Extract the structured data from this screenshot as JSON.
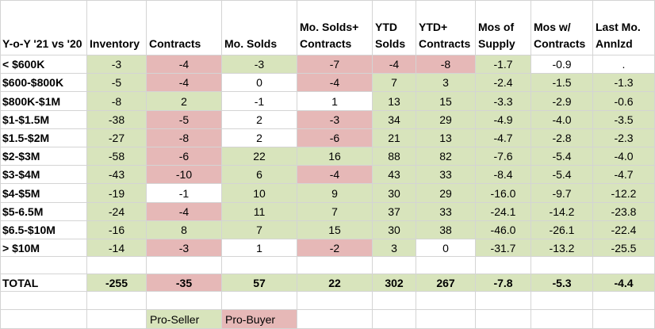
{
  "header": {
    "corner": "Y-o-Y '21 vs '20",
    "columns": [
      "Inventory",
      "Contracts",
      "Mo. Solds",
      "Mo. Solds+ Contracts",
      "YTD Solds",
      "YTD+ Contracts",
      "Mos of Supply",
      "Mos w/ Contracts",
      "Last Mo. Annlzd"
    ]
  },
  "rows": [
    {
      "label": "< $600K",
      "values": [
        "-3",
        "-4",
        "-3",
        "-7",
        "-4",
        "-8",
        "-1.7",
        "-0.9",
        "."
      ],
      "colors": [
        "g",
        "r",
        "g",
        "r",
        "r",
        "r",
        "g",
        "w",
        "w"
      ]
    },
    {
      "label": "$600-$800K",
      "values": [
        "-5",
        "-4",
        "0",
        "-4",
        "7",
        "3",
        "-2.4",
        "-1.5",
        "-1.3"
      ],
      "colors": [
        "g",
        "r",
        "w",
        "r",
        "g",
        "g",
        "g",
        "g",
        "g"
      ]
    },
    {
      "label": "$800K-$1M",
      "values": [
        "-8",
        "2",
        "-1",
        "1",
        "13",
        "15",
        "-3.3",
        "-2.9",
        "-0.6"
      ],
      "colors": [
        "g",
        "g",
        "w",
        "w",
        "g",
        "g",
        "g",
        "g",
        "g"
      ]
    },
    {
      "label": "$1-$1.5M",
      "values": [
        "-38",
        "-5",
        "2",
        "-3",
        "34",
        "29",
        "-4.9",
        "-4.0",
        "-3.5"
      ],
      "colors": [
        "g",
        "r",
        "w",
        "r",
        "g",
        "g",
        "g",
        "g",
        "g"
      ]
    },
    {
      "label": "$1.5-$2M",
      "values": [
        "-27",
        "-8",
        "2",
        "-6",
        "21",
        "13",
        "-4.7",
        "-2.8",
        "-2.3"
      ],
      "colors": [
        "g",
        "r",
        "w",
        "r",
        "g",
        "g",
        "g",
        "g",
        "g"
      ]
    },
    {
      "label": "$2-$3M",
      "values": [
        "-58",
        "-6",
        "22",
        "16",
        "88",
        "82",
        "-7.6",
        "-5.4",
        "-4.0"
      ],
      "colors": [
        "g",
        "r",
        "g",
        "g",
        "g",
        "g",
        "g",
        "g",
        "g"
      ]
    },
    {
      "label": "$3-$4M",
      "values": [
        "-43",
        "-10",
        "6",
        "-4",
        "43",
        "33",
        "-8.4",
        "-5.4",
        "-4.7"
      ],
      "colors": [
        "g",
        "r",
        "g",
        "r",
        "g",
        "g",
        "g",
        "g",
        "g"
      ]
    },
    {
      "label": "$4-$5M",
      "values": [
        "-19",
        "-1",
        "10",
        "9",
        "30",
        "29",
        "-16.0",
        "-9.7",
        "-12.2"
      ],
      "colors": [
        "g",
        "w",
        "g",
        "g",
        "g",
        "g",
        "g",
        "g",
        "g"
      ]
    },
    {
      "label": "$5-6.5M",
      "values": [
        "-24",
        "-4",
        "11",
        "7",
        "37",
        "33",
        "-24.1",
        "-14.2",
        "-23.8"
      ],
      "colors": [
        "g",
        "r",
        "g",
        "g",
        "g",
        "g",
        "g",
        "g",
        "g"
      ]
    },
    {
      "label": "$6.5-$10M",
      "values": [
        "-16",
        "8",
        "7",
        "15",
        "30",
        "38",
        "-46.0",
        "-26.1",
        "-22.4"
      ],
      "colors": [
        "g",
        "g",
        "g",
        "g",
        "g",
        "g",
        "g",
        "g",
        "g"
      ]
    },
    {
      "label": "> $10M",
      "values": [
        "-14",
        "-3",
        "1",
        "-2",
        "3",
        "0",
        "-31.7",
        "-13.2",
        "-25.5"
      ],
      "colors": [
        "g",
        "r",
        "w",
        "r",
        "g",
        "w",
        "g",
        "g",
        "g"
      ]
    }
  ],
  "total": {
    "label": "TOTAL",
    "values": [
      "-255",
      "-35",
      "57",
      "22",
      "302",
      "267",
      "-7.8",
      "-5.3",
      "-4.4"
    ],
    "colors": [
      "g",
      "r",
      "g",
      "g",
      "g",
      "g",
      "g",
      "g",
      "g"
    ]
  },
  "legend": {
    "pro_seller": "Pro-Seller",
    "pro_buyer": "Pro-Buyer"
  },
  "colors": {
    "green": "#d8e4bc",
    "red": "#e6b8b7",
    "grid": "#d4d4d4"
  }
}
